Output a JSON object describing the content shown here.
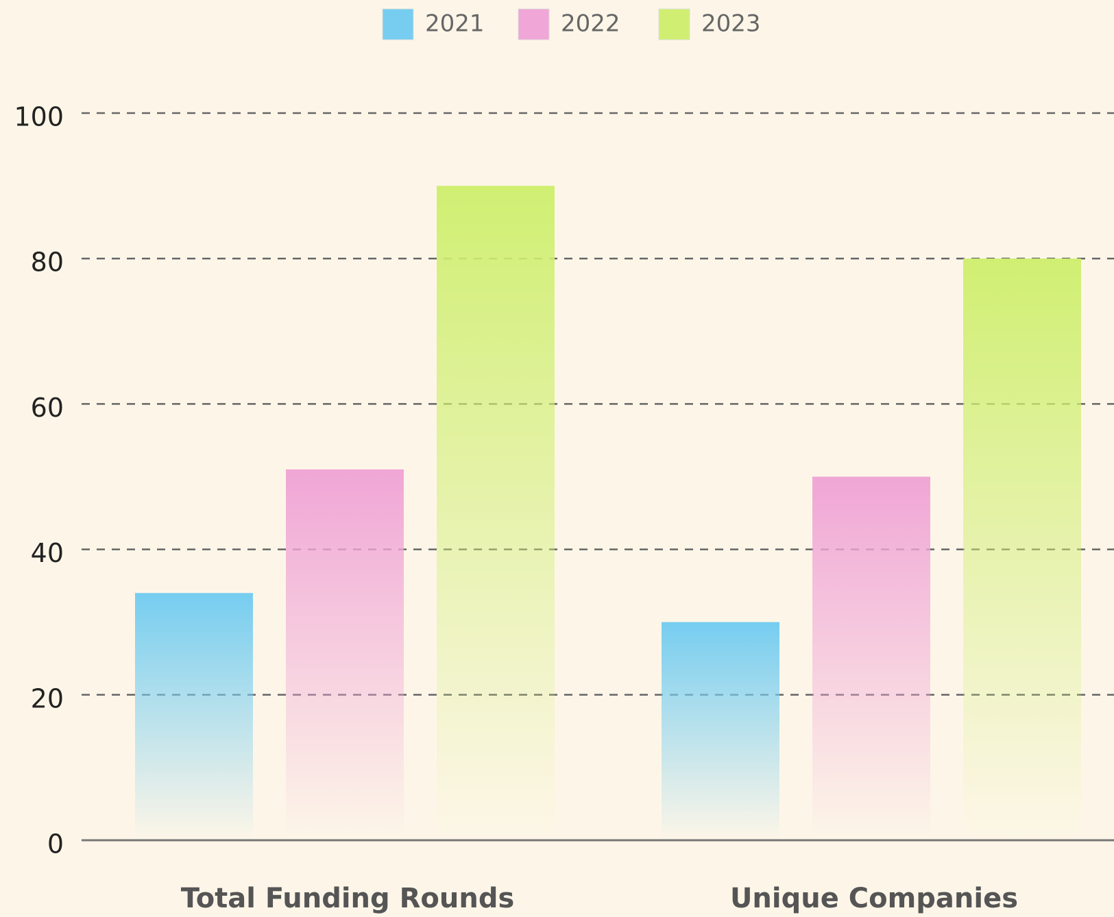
{
  "chart_data": {
    "type": "bar",
    "categories": [
      "Total Funding Rounds",
      "Unique Companies"
    ],
    "series": [
      {
        "name": "2021",
        "color": "#76cdf0",
        "values": [
          34,
          30
        ]
      },
      {
        "name": "2022",
        "color": "#f0a6d6",
        "values": [
          51,
          50
        ]
      },
      {
        "name": "2023",
        "color": "#d0ef72",
        "values": [
          90,
          80
        ]
      }
    ],
    "ylim": [
      0,
      100
    ],
    "yticks": [
      0,
      20,
      40,
      60,
      80,
      100
    ],
    "grid": true,
    "legend": "top"
  }
}
